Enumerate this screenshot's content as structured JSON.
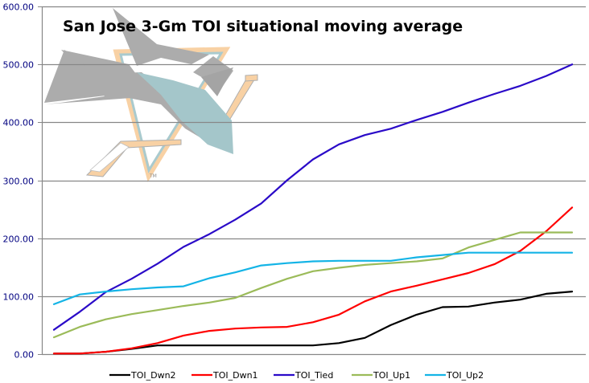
{
  "chart_data": {
    "type": "line",
    "title": "San Jose 3-Gm TOI situational moving average",
    "xlabel": "",
    "ylabel": "",
    "ylim": [
      0,
      600
    ],
    "yticks": [
      "0.00",
      "100.00",
      "200.00",
      "300.00",
      "400.00",
      "500.00",
      "600.00"
    ],
    "ytick_values": [
      0,
      100,
      200,
      300,
      400,
      500,
      600
    ],
    "grid": true,
    "legend_position": "bottom",
    "x": [
      1,
      2,
      3,
      4,
      5,
      6,
      7,
      8,
      9,
      10,
      11,
      12,
      13,
      14,
      15,
      16,
      17,
      18,
      19,
      20,
      21
    ],
    "series": [
      {
        "name": "TOI_Dwn2",
        "color": "#000000",
        "values": [
          1,
          1,
          4,
          9,
          15,
          15,
          15,
          15,
          15,
          15,
          15,
          19,
          28,
          50,
          68,
          81,
          82,
          89,
          94,
          104,
          108
        ]
      },
      {
        "name": "TOI_Dwn1",
        "color": "#ff0000",
        "values": [
          1,
          1,
          4,
          10,
          19,
          32,
          40,
          44,
          46,
          47,
          55,
          68,
          91,
          108,
          118,
          129,
          140,
          155,
          178,
          212,
          253
        ]
      },
      {
        "name": "TOI_Tied",
        "color": "#2a0ac8",
        "values": [
          42,
          73,
          107,
          130,
          156,
          185,
          207,
          232,
          260,
          300,
          336,
          362,
          378,
          389,
          404,
          418,
          434,
          449,
          463,
          480,
          500
        ]
      },
      {
        "name": "TOI_Up1",
        "color": "#9bbb59",
        "values": [
          29,
          47,
          60,
          69,
          76,
          83,
          89,
          97,
          114,
          130,
          143,
          149,
          154,
          157,
          160,
          165,
          184,
          197,
          210,
          210,
          210
        ]
      },
      {
        "name": "TOI_Up2",
        "color": "#14b4e6",
        "values": [
          86,
          103,
          108,
          112,
          115,
          117,
          131,
          141,
          153,
          157,
          160,
          161,
          161,
          161,
          167,
          171,
          175,
          175,
          175,
          175,
          175
        ]
      }
    ]
  },
  "background_logo": "san-jose-sharks-logo"
}
